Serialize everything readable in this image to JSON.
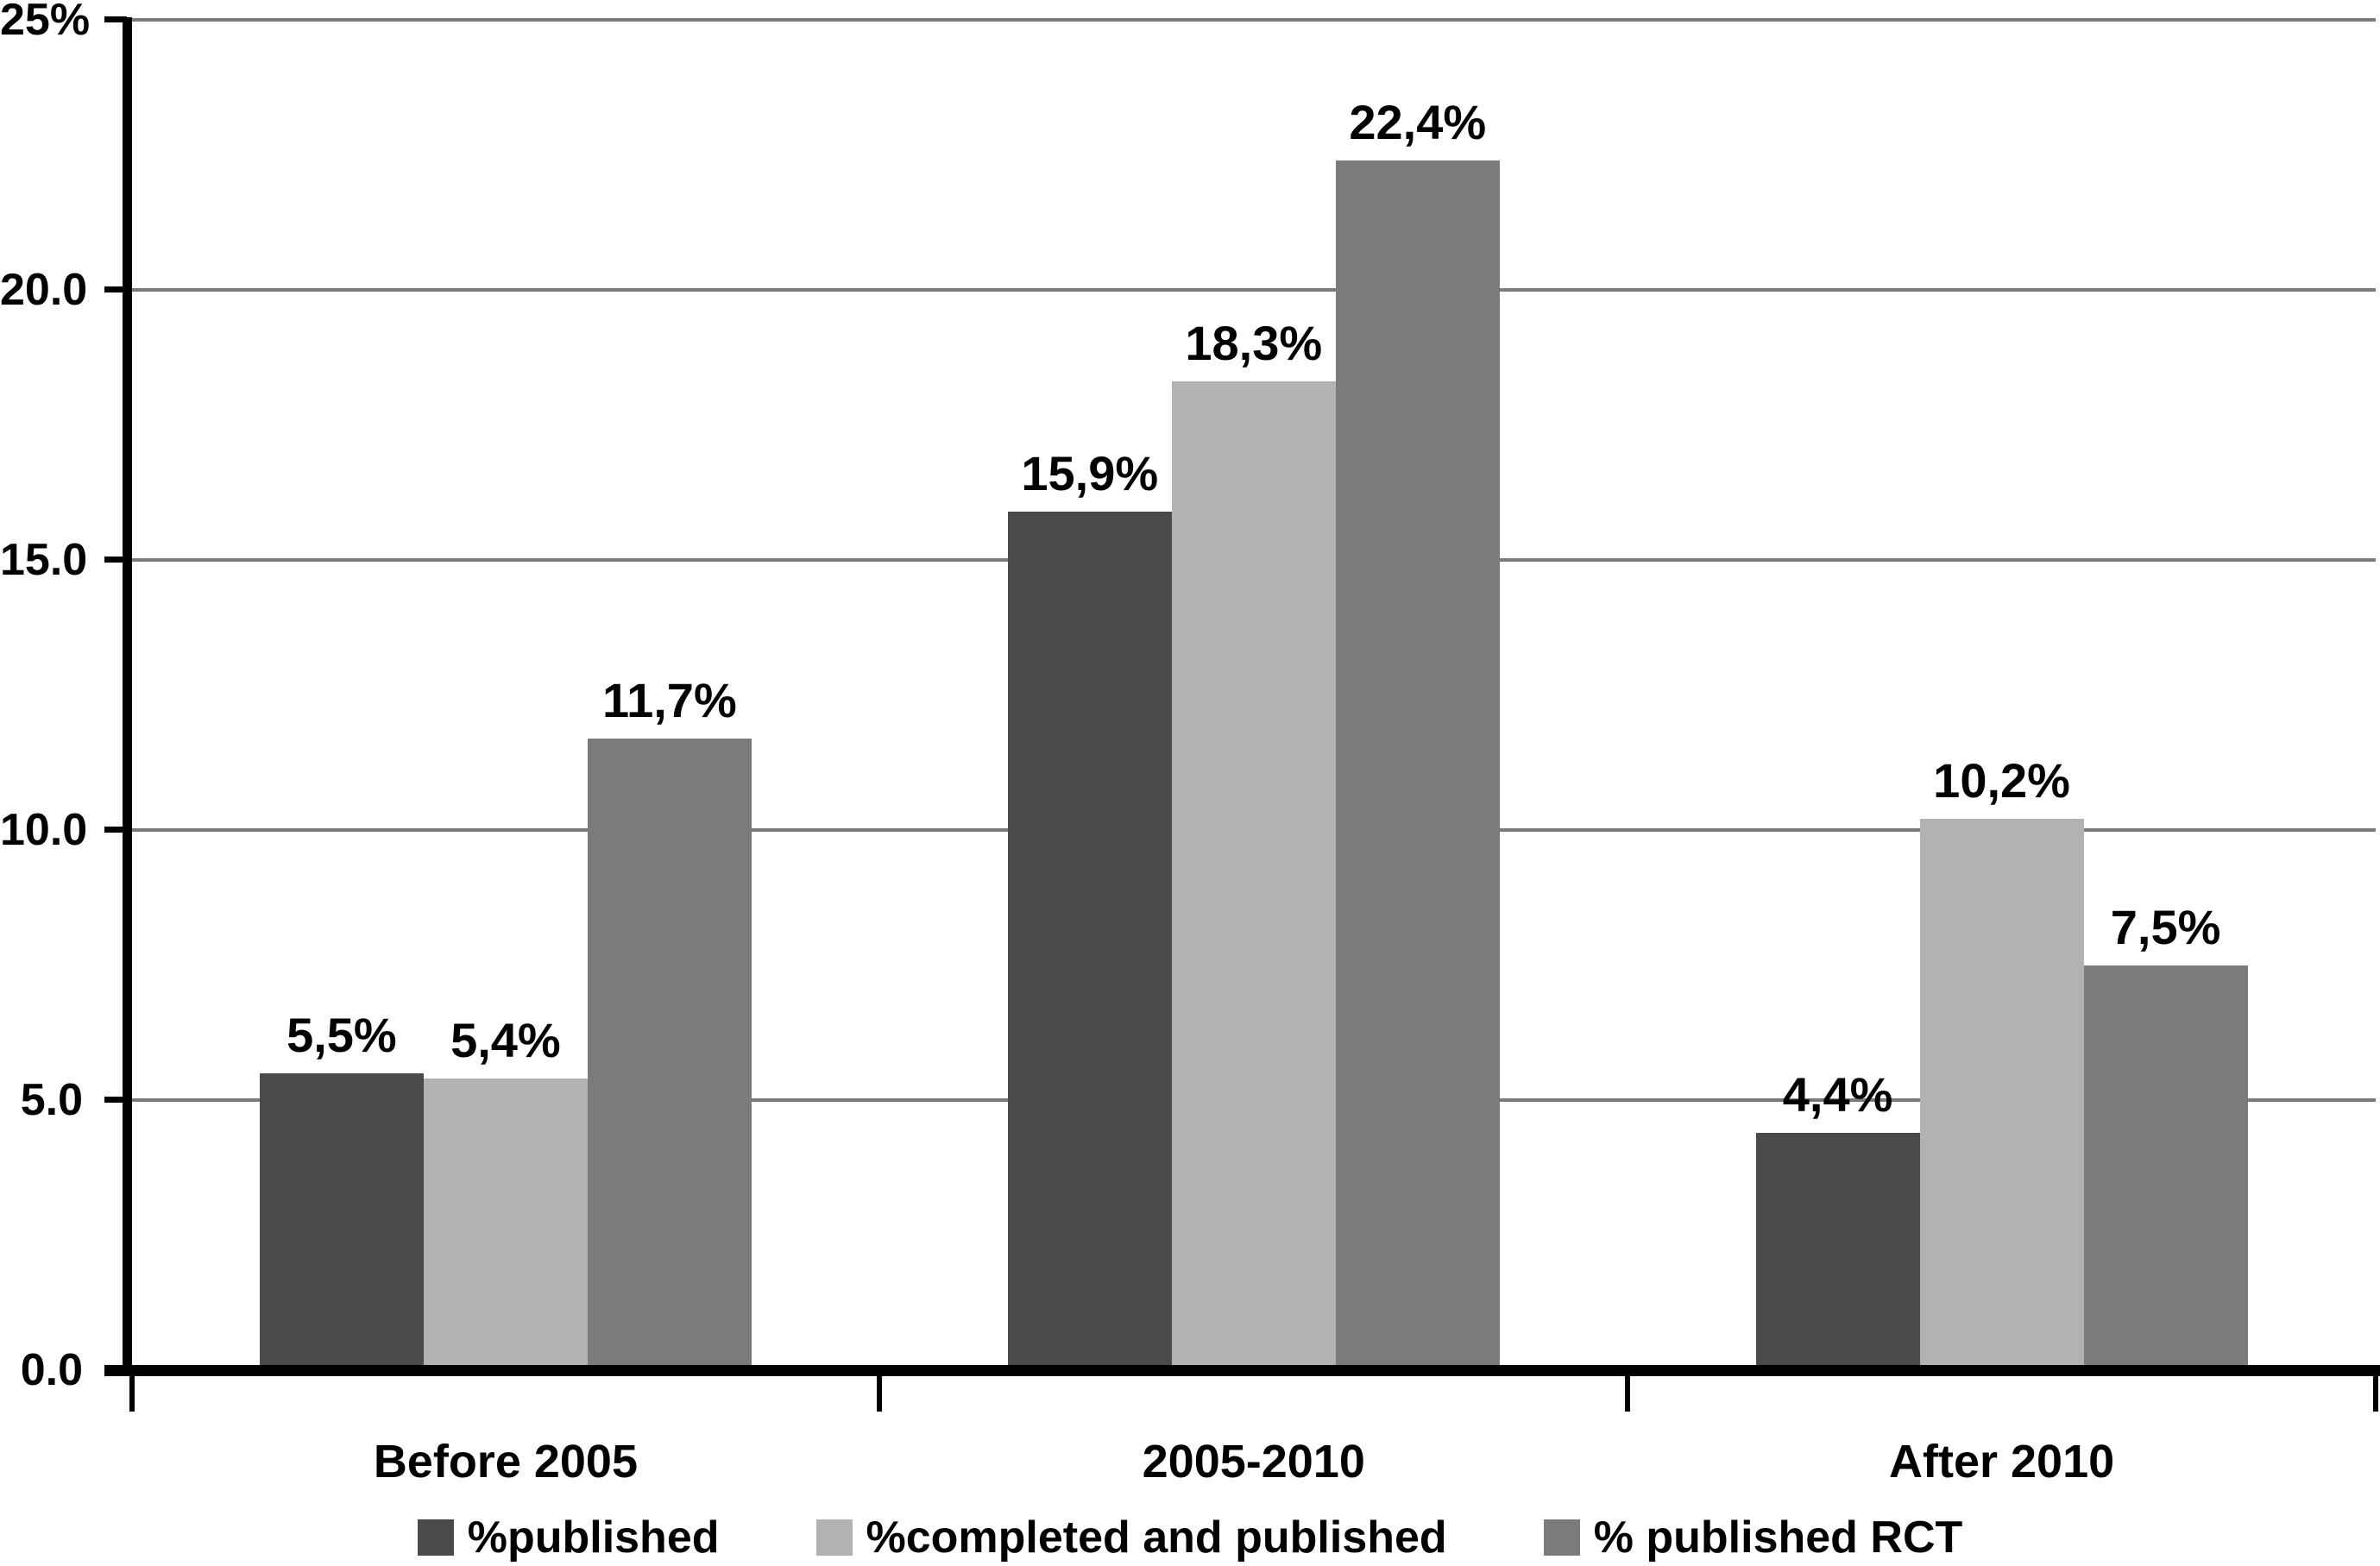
{
  "chart_data": {
    "type": "bar",
    "title": "",
    "xlabel": "",
    "ylabel": "",
    "categories": [
      "Before 2005",
      "2005-2010",
      "After 2010"
    ],
    "series": [
      {
        "name": "%published",
        "color": "#4a4a4a",
        "values": [
          5.5,
          15.9,
          4.4
        ],
        "labels": [
          "5,5%",
          "15,9%",
          "4,4%"
        ]
      },
      {
        "name": "%completed and published",
        "color": "#b2b2b2",
        "values": [
          5.4,
          18.3,
          10.2
        ],
        "labels": [
          "5,4%",
          "18,3%",
          "10,2%"
        ]
      },
      {
        "name": "% published RCT",
        "color": "#7b7b7b",
        "values": [
          11.7,
          22.4,
          7.5
        ],
        "labels": [
          "11,7%",
          "22,4%",
          "7,5%"
        ]
      }
    ],
    "ylim": [
      0,
      25
    ],
    "yticks": [
      {
        "value": 25,
        "label": "25%"
      },
      {
        "value": 20,
        "label": "20.0"
      },
      {
        "value": 15,
        "label": "15.0"
      },
      {
        "value": 10,
        "label": "10.0"
      },
      {
        "value": 5,
        "label": "5.0"
      },
      {
        "value": 0,
        "label": "0.0"
      }
    ],
    "grid": true,
    "legend_position": "bottom",
    "colors": {
      "gridline": "#7a7a7a",
      "axis": "#000000",
      "text": "#000000",
      "background": "#ffffff"
    }
  }
}
